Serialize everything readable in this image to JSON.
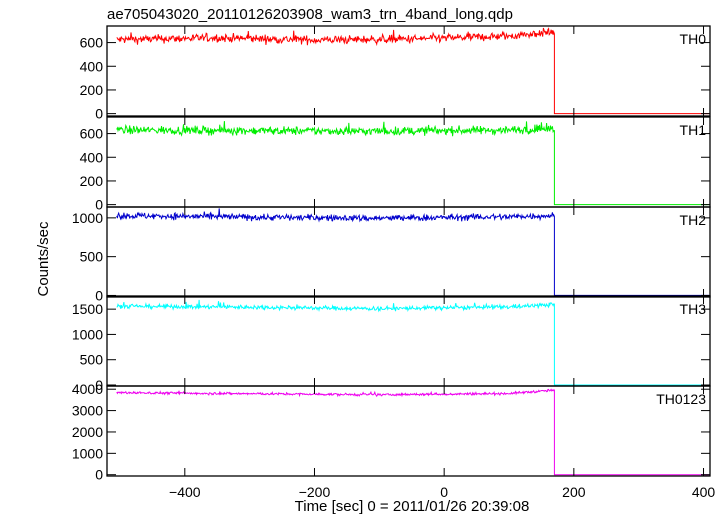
{
  "chart_data": {
    "type": "line",
    "title": "ae705043020_20110126203908_wam3_trn_4band_long.qdp",
    "xlabel": "Time [sec] 0 = 2011/01/26 20:39:08",
    "ylabel": "Counts/sec",
    "xlim": [
      -520,
      410
    ],
    "x_ticks": [
      -400,
      -200,
      0,
      200,
      400
    ],
    "x_tick_labels": [
      "−400",
      "−200",
      "0",
      "200",
      "400"
    ],
    "drop_time": 170,
    "x_start": -505,
    "grid": false,
    "panels": [
      {
        "name": "TH0",
        "color": "#ff0000",
        "ylim": [
          -20,
          740
        ],
        "yticks": [
          0,
          200,
          400,
          600
        ],
        "series_level": [
          {
            "x": -505,
            "y": 625
          },
          {
            "x": -350,
            "y": 640
          },
          {
            "x": -200,
            "y": 622
          },
          {
            "x": -50,
            "y": 630
          },
          {
            "x": 100,
            "y": 655
          },
          {
            "x": 168,
            "y": 690
          }
        ],
        "noise": 25,
        "after_drop": 0
      },
      {
        "name": "TH1",
        "color": "#00ee00",
        "ylim": [
          -20,
          740
        ],
        "yticks": [
          0,
          200,
          400,
          600
        ],
        "series_level": [
          {
            "x": -505,
            "y": 630
          },
          {
            "x": -300,
            "y": 625
          },
          {
            "x": -100,
            "y": 620
          },
          {
            "x": 100,
            "y": 630
          },
          {
            "x": 168,
            "y": 640
          }
        ],
        "noise": 25,
        "after_drop": 0
      },
      {
        "name": "TH2",
        "color": "#0000cc",
        "ylim": [
          -20,
          1140
        ],
        "yticks": [
          0,
          500,
          1000
        ],
        "series_level": [
          {
            "x": -505,
            "y": 1030
          },
          {
            "x": -300,
            "y": 1010
          },
          {
            "x": -100,
            "y": 995
          },
          {
            "x": 100,
            "y": 1015
          },
          {
            "x": 168,
            "y": 1030
          }
        ],
        "noise": 30,
        "after_drop": 0
      },
      {
        "name": "TH3",
        "color": "#00ffff",
        "ylim": [
          -20,
          1760
        ],
        "yticks": [
          0,
          500,
          1000,
          1500
        ],
        "series_level": [
          {
            "x": -505,
            "y": 1560
          },
          {
            "x": -300,
            "y": 1540
          },
          {
            "x": -100,
            "y": 1510
          },
          {
            "x": 100,
            "y": 1545
          },
          {
            "x": 168,
            "y": 1590
          }
        ],
        "noise": 30,
        "after_drop": 0
      },
      {
        "name": "TH0123",
        "color": "#ee00ee",
        "ylim": [
          -60,
          4150
        ],
        "yticks": [
          0,
          1000,
          2000,
          3000,
          4000
        ],
        "series_level": [
          {
            "x": -505,
            "y": 3840
          },
          {
            "x": -300,
            "y": 3790
          },
          {
            "x": -100,
            "y": 3740
          },
          {
            "x": 100,
            "y": 3800
          },
          {
            "x": 168,
            "y": 3950
          }
        ],
        "noise": 40,
        "after_drop": 0
      }
    ]
  }
}
